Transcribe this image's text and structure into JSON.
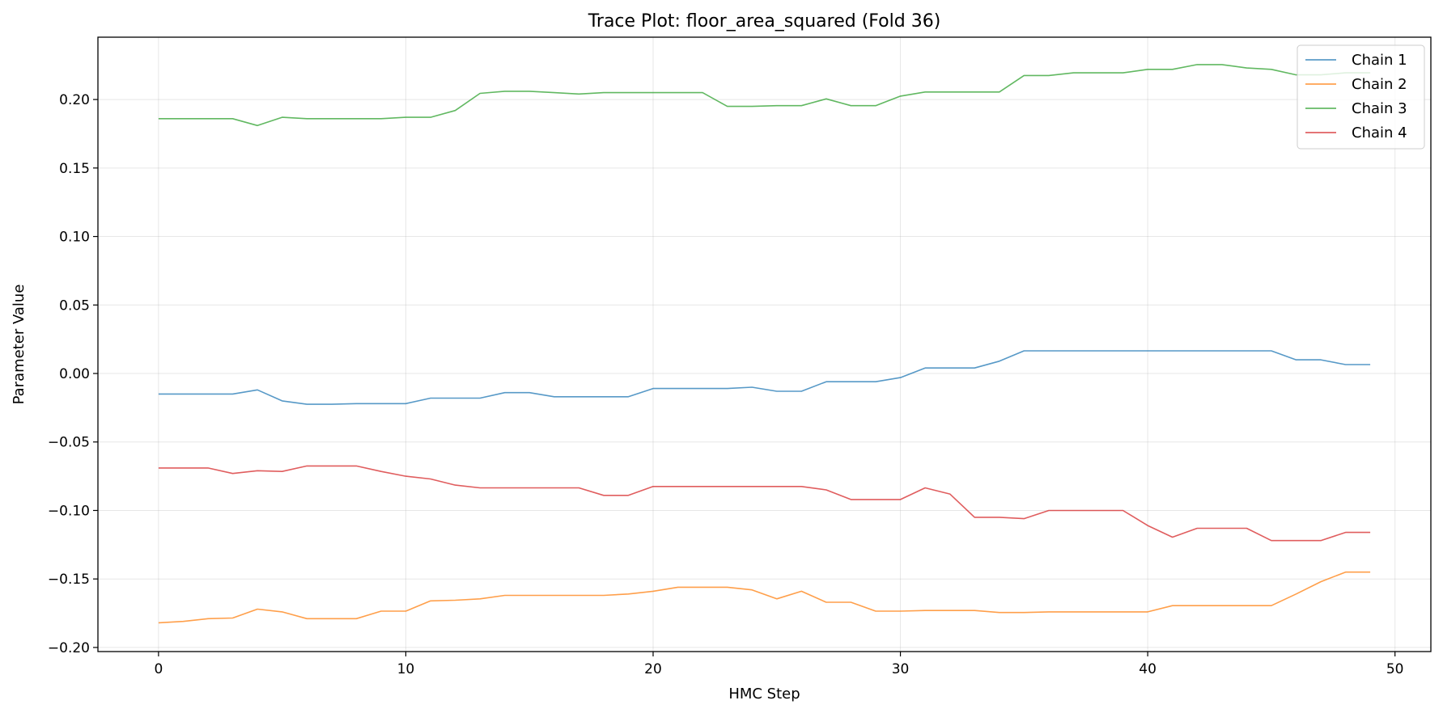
{
  "chart_data": {
    "type": "line",
    "title": "Trace Plot: floor_area_squared (Fold 36)",
    "xlabel": "HMC Step",
    "ylabel": "Parameter Value",
    "xlim": [
      -2.45,
      51.45
    ],
    "ylim": [
      -0.203,
      0.2455
    ],
    "xticks": [
      0,
      10,
      20,
      30,
      40,
      50
    ],
    "yticks": [
      -0.2,
      -0.15,
      -0.1,
      -0.05,
      0.0,
      0.05,
      0.1,
      0.15,
      0.2
    ],
    "xtick_labels": [
      "0",
      "10",
      "20",
      "30",
      "40",
      "50"
    ],
    "ytick_labels": [
      "−0.20",
      "−0.15",
      "−0.10",
      "−0.05",
      "0.00",
      "0.05",
      "0.10",
      "0.15",
      "0.20"
    ],
    "grid": true,
    "legend_position": "top-right",
    "x": [
      0,
      1,
      2,
      3,
      4,
      5,
      6,
      7,
      8,
      9,
      10,
      11,
      12,
      13,
      14,
      15,
      16,
      17,
      18,
      19,
      20,
      21,
      22,
      23,
      24,
      25,
      26,
      27,
      28,
      29,
      30,
      31,
      32,
      33,
      34,
      35,
      36,
      37,
      38,
      39,
      40,
      41,
      42,
      43,
      44,
      45,
      46,
      47,
      48,
      49
    ],
    "series": [
      {
        "name": "Chain 1",
        "color": "#1f77b4",
        "values": [
          -0.015,
          -0.015,
          -0.015,
          -0.015,
          -0.012,
          -0.02,
          -0.0225,
          -0.0225,
          -0.022,
          -0.022,
          -0.022,
          -0.018,
          -0.018,
          -0.018,
          -0.014,
          -0.014,
          -0.017,
          -0.017,
          -0.017,
          -0.017,
          -0.011,
          -0.011,
          -0.011,
          -0.011,
          -0.01,
          -0.013,
          -0.013,
          -0.006,
          -0.006,
          -0.006,
          -0.003,
          0.004,
          0.004,
          0.004,
          0.009,
          0.0165,
          0.0165,
          0.0165,
          0.0165,
          0.0165,
          0.0165,
          0.0165,
          0.0165,
          0.0165,
          0.0165,
          0.0165,
          0.01,
          0.01,
          0.0065,
          0.0065
        ]
      },
      {
        "name": "Chain 2",
        "color": "#ff7f0e",
        "values": [
          -0.182,
          -0.181,
          -0.179,
          -0.1785,
          -0.172,
          -0.174,
          -0.179,
          -0.179,
          -0.179,
          -0.1735,
          -0.1735,
          -0.166,
          -0.1655,
          -0.1645,
          -0.162,
          -0.162,
          -0.162,
          -0.162,
          -0.162,
          -0.161,
          -0.159,
          -0.156,
          -0.156,
          -0.156,
          -0.158,
          -0.1645,
          -0.159,
          -0.167,
          -0.167,
          -0.1735,
          -0.1735,
          -0.173,
          -0.173,
          -0.173,
          -0.1745,
          -0.1745,
          -0.174,
          -0.174,
          -0.174,
          -0.174,
          -0.174,
          -0.1695,
          -0.1695,
          -0.1695,
          -0.1695,
          -0.1695,
          -0.161,
          -0.152,
          -0.145,
          -0.145
        ]
      },
      {
        "name": "Chain 3",
        "color": "#2ca02c",
        "values": [
          0.186,
          0.186,
          0.186,
          0.186,
          0.181,
          0.187,
          0.186,
          0.186,
          0.186,
          0.186,
          0.187,
          0.187,
          0.192,
          0.2045,
          0.206,
          0.206,
          0.205,
          0.204,
          0.205,
          0.205,
          0.205,
          0.205,
          0.205,
          0.195,
          0.195,
          0.1955,
          0.1955,
          0.2005,
          0.1955,
          0.1955,
          0.2025,
          0.2055,
          0.2055,
          0.2055,
          0.2055,
          0.2175,
          0.2175,
          0.2195,
          0.2195,
          0.2195,
          0.222,
          0.222,
          0.2255,
          0.2255,
          0.223,
          0.222,
          0.218,
          0.218,
          0.2195,
          0.2195
        ]
      },
      {
        "name": "Chain 4",
        "color": "#d62728",
        "values": [
          -0.069,
          -0.069,
          -0.069,
          -0.073,
          -0.071,
          -0.0715,
          -0.0675,
          -0.0675,
          -0.0675,
          -0.0715,
          -0.075,
          -0.077,
          -0.0815,
          -0.0835,
          -0.0835,
          -0.0835,
          -0.0835,
          -0.0835,
          -0.089,
          -0.089,
          -0.0825,
          -0.0825,
          -0.0825,
          -0.0825,
          -0.0825,
          -0.0825,
          -0.0825,
          -0.085,
          -0.092,
          -0.092,
          -0.092,
          -0.0835,
          -0.088,
          -0.105,
          -0.105,
          -0.106,
          -0.1,
          -0.1,
          -0.1,
          -0.1,
          -0.111,
          -0.1195,
          -0.113,
          -0.113,
          -0.113,
          -0.122,
          -0.122,
          -0.122,
          -0.116,
          -0.116
        ]
      }
    ]
  }
}
